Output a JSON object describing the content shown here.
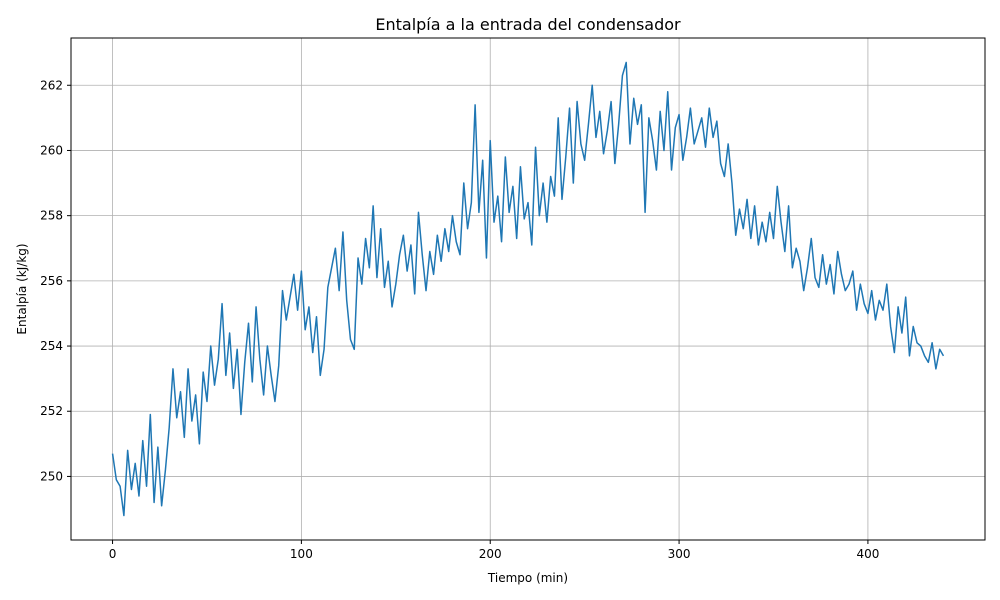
{
  "chart_data": {
    "type": "line",
    "title": "Entalpía a la entrada del condensador",
    "x_label": "Tiempo (min)",
    "y_label": "Entalpía (kJ/kg)",
    "x": [
      0,
      2,
      4,
      6,
      8,
      10,
      12,
      14,
      16,
      18,
      20,
      22,
      24,
      26,
      28,
      30,
      32,
      34,
      36,
      38,
      40,
      42,
      44,
      46,
      48,
      50,
      52,
      54,
      56,
      58,
      60,
      62,
      64,
      66,
      68,
      70,
      72,
      74,
      76,
      78,
      80,
      82,
      84,
      86,
      88,
      90,
      92,
      94,
      96,
      98,
      100,
      102,
      104,
      106,
      108,
      110,
      112,
      114,
      116,
      118,
      120,
      122,
      124,
      126,
      128,
      130,
      132,
      134,
      136,
      138,
      140,
      142,
      144,
      146,
      148,
      150,
      152,
      154,
      156,
      158,
      160,
      162,
      164,
      166,
      168,
      170,
      172,
      174,
      176,
      178,
      180,
      182,
      184,
      186,
      188,
      190,
      192,
      194,
      196,
      198,
      200,
      202,
      204,
      206,
      208,
      210,
      212,
      214,
      216,
      218,
      220,
      222,
      224,
      226,
      228,
      230,
      232,
      234,
      236,
      238,
      240,
      242,
      244,
      246,
      248,
      250,
      252,
      254,
      256,
      258,
      260,
      262,
      264,
      266,
      268,
      270,
      272,
      274,
      276,
      278,
      280,
      282,
      284,
      286,
      288,
      290,
      292,
      294,
      296,
      298,
      300,
      302,
      304,
      306,
      308,
      310,
      312,
      314,
      316,
      318,
      320,
      322,
      324,
      326,
      328,
      330,
      332,
      334,
      336,
      338,
      340,
      342,
      344,
      346,
      348,
      350,
      352,
      354,
      356,
      358,
      360,
      362,
      364,
      366,
      368,
      370,
      372,
      374,
      376,
      378,
      380,
      382,
      384,
      386,
      388,
      390,
      392,
      394,
      396,
      398,
      400,
      402,
      404,
      406,
      408,
      410,
      412,
      414,
      416,
      418,
      420,
      422,
      424,
      426,
      428,
      430,
      432,
      434,
      436,
      438,
      440
    ],
    "series": [
      {
        "name": "Entalpía",
        "color": "#1f77b4",
        "values": [
          250.7,
          249.9,
          249.7,
          248.8,
          250.8,
          249.6,
          250.4,
          249.4,
          251.1,
          249.7,
          251.9,
          249.2,
          250.9,
          249.1,
          250.2,
          251.5,
          253.3,
          251.8,
          252.6,
          251.2,
          253.3,
          251.7,
          252.5,
          251.0,
          253.2,
          252.3,
          254.0,
          252.8,
          253.6,
          255.3,
          253.1,
          254.4,
          252.7,
          253.9,
          251.9,
          253.5,
          254.7,
          252.9,
          255.2,
          253.6,
          252.5,
          254.0,
          253.1,
          252.3,
          253.4,
          255.7,
          254.8,
          255.5,
          256.2,
          255.1,
          256.3,
          254.5,
          255.2,
          253.8,
          254.9,
          253.1,
          253.9,
          255.8,
          256.4,
          257.0,
          255.7,
          257.5,
          255.4,
          254.2,
          253.9,
          256.7,
          255.9,
          257.3,
          256.4,
          258.3,
          256.1,
          257.6,
          255.8,
          256.6,
          255.2,
          255.9,
          256.8,
          257.4,
          256.3,
          257.1,
          255.6,
          258.1,
          256.8,
          255.7,
          256.9,
          256.2,
          257.4,
          256.6,
          257.6,
          256.9,
          258.0,
          257.2,
          256.8,
          259.0,
          257.6,
          258.4,
          261.4,
          258.1,
          259.7,
          256.7,
          260.3,
          257.8,
          258.6,
          257.2,
          259.8,
          258.1,
          258.9,
          257.3,
          259.5,
          257.9,
          258.4,
          257.1,
          260.1,
          258.0,
          259.0,
          257.8,
          259.2,
          258.6,
          261.0,
          258.5,
          259.8,
          261.3,
          259.0,
          261.5,
          260.2,
          259.7,
          260.8,
          262.0,
          260.4,
          261.2,
          259.9,
          260.6,
          261.5,
          259.6,
          260.8,
          262.3,
          262.7,
          260.2,
          261.6,
          260.8,
          261.4,
          258.1,
          261.0,
          260.3,
          259.4,
          261.2,
          260.0,
          261.8,
          259.4,
          260.7,
          261.1,
          259.7,
          260.4,
          261.3,
          260.2,
          260.6,
          261.0,
          260.1,
          261.3,
          260.4,
          260.9,
          259.6,
          259.2,
          260.2,
          259.0,
          257.4,
          258.2,
          257.6,
          258.5,
          257.3,
          258.3,
          257.1,
          257.8,
          257.2,
          258.1,
          257.3,
          258.9,
          257.8,
          256.9,
          258.3,
          256.4,
          257.0,
          256.6,
          255.7,
          256.4,
          257.3,
          256.1,
          255.8,
          256.8,
          255.9,
          256.5,
          255.6,
          256.9,
          256.2,
          255.7,
          255.9,
          256.3,
          255.1,
          255.9,
          255.3,
          255.0,
          255.7,
          254.8,
          255.4,
          255.1,
          255.9,
          254.6,
          253.8,
          255.2,
          254.4,
          255.5,
          253.7,
          254.6,
          254.1,
          254.0,
          253.7,
          253.5,
          254.1,
          253.3,
          253.9,
          253.7
        ]
      }
    ],
    "xlim": [
      -22,
      462
    ],
    "ylim": [
      248.05,
      263.45
    ],
    "xticks": [
      0,
      100,
      200,
      300,
      400
    ],
    "yticks": [
      250,
      252,
      254,
      256,
      258,
      260,
      262
    ],
    "grid": true
  }
}
